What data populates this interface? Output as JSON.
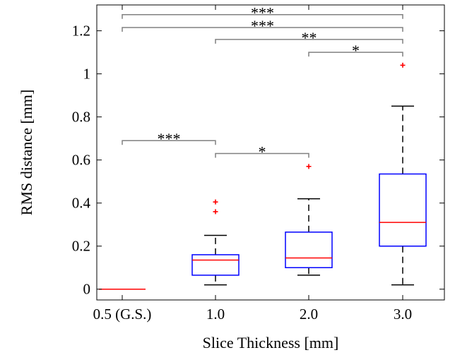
{
  "chart_data": {
    "type": "box",
    "title": "",
    "xlabel": "Slice Thickness [mm]",
    "ylabel": "RMS distance [mm]",
    "ylim": [
      -0.05,
      1.32
    ],
    "yticks": [
      0,
      0.2,
      0.4,
      0.6,
      0.8,
      1,
      1.2
    ],
    "ytick_labels": [
      "0",
      "0.2",
      "0.4",
      "0.6",
      "0.8",
      "1",
      "1.2"
    ],
    "categories": [
      "0.5 (G.S.)",
      "1.0",
      "2.0",
      "3.0"
    ],
    "grid": false,
    "box_color": "#0000ff",
    "median_color": "#ff0000",
    "whisker_color": "#000000",
    "outlier_color": "#ff0000",
    "bracket_color": "#808080",
    "boxes": [
      {
        "category": "0.5 (G.S.)",
        "whisker_low": 0,
        "q1": 0,
        "median": 0,
        "q3": 0,
        "whisker_high": 0,
        "outliers": []
      },
      {
        "category": "1.0",
        "whisker_low": 0.02,
        "q1": 0.065,
        "median": 0.135,
        "q3": 0.16,
        "whisker_high": 0.25,
        "outliers": [
          0.36,
          0.405
        ]
      },
      {
        "category": "2.0",
        "whisker_low": 0.065,
        "q1": 0.1,
        "median": 0.145,
        "q3": 0.265,
        "whisker_high": 0.42,
        "outliers": [
          0.57
        ]
      },
      {
        "category": "3.0",
        "whisker_low": 0.02,
        "q1": 0.2,
        "median": 0.31,
        "q3": 0.535,
        "whisker_high": 0.85,
        "outliers": [
          1.04
        ]
      }
    ],
    "significance": [
      {
        "from": "0.5 (G.S.)",
        "to": "1.0",
        "y": 0.69,
        "label": "***"
      },
      {
        "from": "1.0",
        "to": "2.0",
        "y": 0.63,
        "label": "*"
      },
      {
        "from": "2.0",
        "to": "3.0",
        "y": 1.1,
        "label": "*"
      },
      {
        "from": "1.0",
        "to": "3.0",
        "y": 1.16,
        "label": "**"
      },
      {
        "from": "0.5 (G.S.)",
        "to": "3.0",
        "y": 1.215,
        "label": "***"
      },
      {
        "from": "0.5 (G.S.)",
        "to": "3.0",
        "y": 1.275,
        "label": "***"
      }
    ]
  }
}
